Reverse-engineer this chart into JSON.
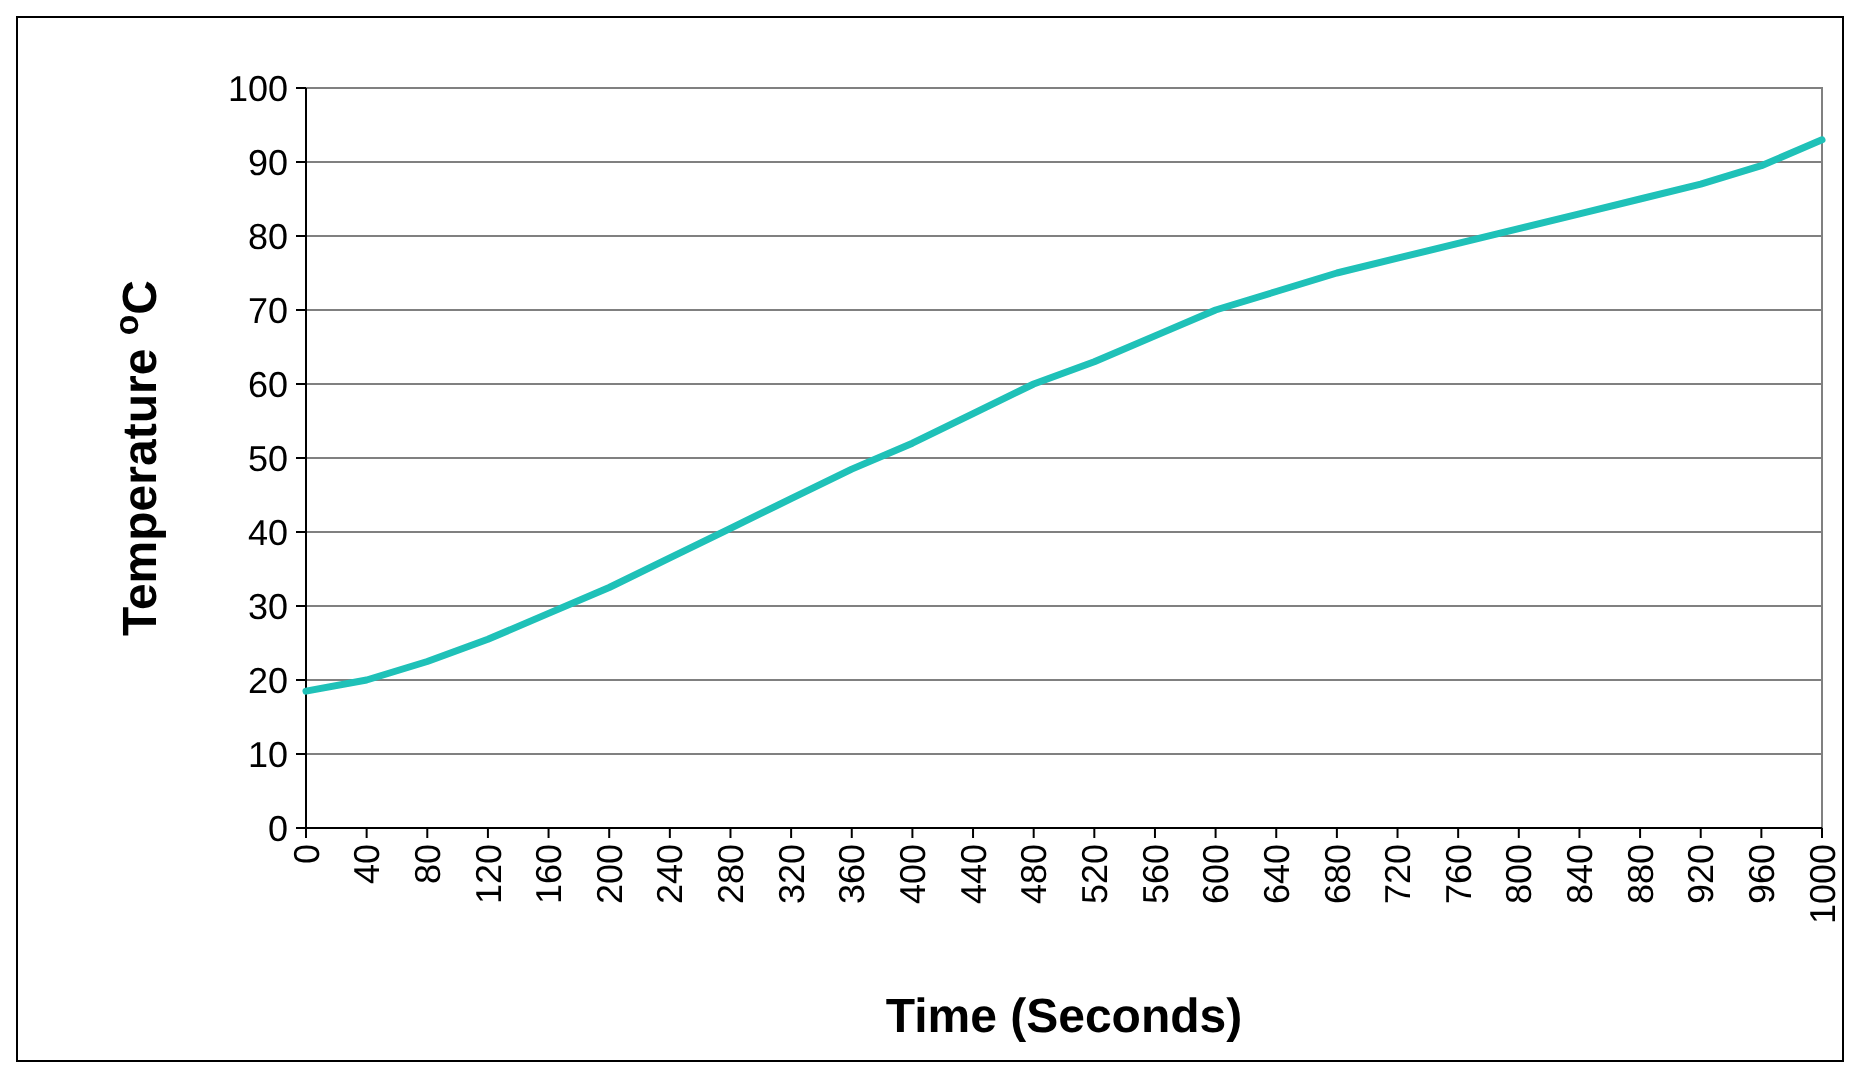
{
  "chart_data": {
    "type": "line",
    "xlabel": "Time (Seconds)",
    "ylabel": "Temperature  $^{o}$C",
    "x": [
      0,
      40,
      80,
      120,
      160,
      200,
      240,
      280,
      320,
      360,
      400,
      440,
      480,
      520,
      560,
      600,
      640,
      680,
      720,
      760,
      800,
      840,
      880,
      920,
      960,
      1000
    ],
    "series": [
      {
        "color": "#1fc1b8",
        "values": [
          18.5,
          20,
          22.5,
          25.5,
          29,
          32.5,
          36.5,
          40.5,
          44.5,
          48.5,
          52,
          56,
          60,
          63,
          66.5,
          70,
          72.5,
          75,
          77,
          79,
          81,
          83,
          85,
          87,
          89.5,
          93
        ]
      }
    ],
    "xlim": [
      0,
      1000
    ],
    "xticks": [
      0,
      40,
      80,
      120,
      160,
      200,
      240,
      280,
      320,
      360,
      400,
      440,
      480,
      520,
      560,
      600,
      640,
      680,
      720,
      760,
      800,
      840,
      880,
      920,
      960,
      1000
    ],
    "ylim": [
      0,
      100
    ],
    "yticks": [
      0,
      10,
      20,
      30,
      40,
      50,
      60,
      70,
      80,
      90,
      100
    ],
    "grid": "y",
    "marker": "none",
    "line_style": "solid"
  }
}
